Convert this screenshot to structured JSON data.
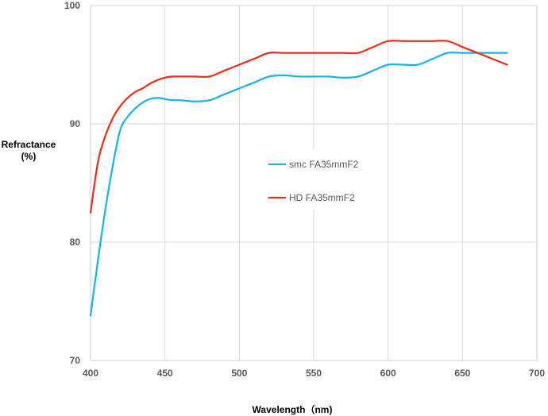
{
  "chart_data": {
    "type": "line",
    "xlabel": "Wavelength（nm)",
    "ylabel_line1": "Refractance",
    "ylabel_line2": "(%)",
    "xlim": [
      400,
      700
    ],
    "ylim": [
      70,
      100
    ],
    "xticks": [
      400,
      450,
      500,
      550,
      600,
      650,
      700
    ],
    "yticks": [
      70,
      80,
      90,
      100
    ],
    "grid": true,
    "legend_position": "center",
    "series": [
      {
        "name": "smc FA35mmF2",
        "color": "#1ab3e6",
        "x": [
          400,
          405,
          410,
          415,
          420,
          425,
          430,
          435,
          440,
          445,
          450,
          455,
          460,
          470,
          480,
          490,
          500,
          510,
          520,
          530,
          540,
          550,
          560,
          570,
          580,
          590,
          600,
          610,
          620,
          630,
          640,
          650,
          660,
          670,
          680
        ],
        "y": [
          73.8,
          78.5,
          82.8,
          86.5,
          89.5,
          90.6,
          91.3,
          91.8,
          92.1,
          92.2,
          92.1,
          92.0,
          92.0,
          91.9,
          92.0,
          92.5,
          93.0,
          93.5,
          94.0,
          94.1,
          94.0,
          94.0,
          94.0,
          93.9,
          94.0,
          94.5,
          95.0,
          95.0,
          95.0,
          95.5,
          96.0,
          96.0,
          96.0,
          96.0,
          96.0
        ]
      },
      {
        "name": "HD FA35mmF2",
        "color": "#e8311b",
        "x": [
          400,
          405,
          410,
          415,
          420,
          425,
          430,
          435,
          440,
          445,
          450,
          455,
          460,
          470,
          480,
          490,
          500,
          510,
          520,
          530,
          540,
          550,
          560,
          570,
          580,
          590,
          600,
          610,
          620,
          630,
          640,
          650,
          660,
          670,
          680
        ],
        "y": [
          82.5,
          86.8,
          89.0,
          90.5,
          91.5,
          92.2,
          92.7,
          93.0,
          93.4,
          93.7,
          93.9,
          94.0,
          94.0,
          94.0,
          94.0,
          94.5,
          95.0,
          95.5,
          96.0,
          96.0,
          96.0,
          96.0,
          96.0,
          96.0,
          96.0,
          96.5,
          97.0,
          97.0,
          97.0,
          97.0,
          97.0,
          96.5,
          96.0,
          95.5,
          95.0
        ]
      }
    ]
  }
}
